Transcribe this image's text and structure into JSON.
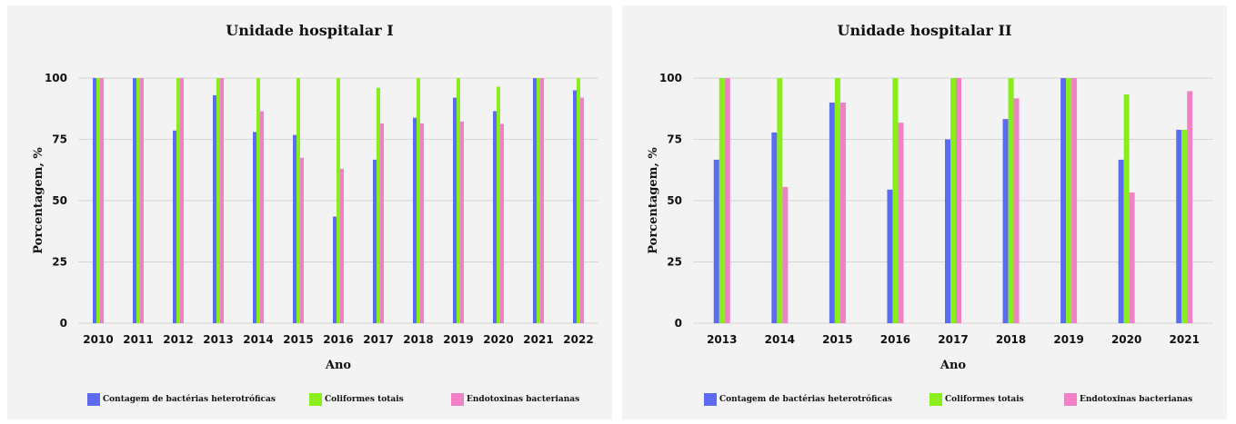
{
  "colors": {
    "bacterias": "#5b6cf0",
    "coliformes": "#88ee1c",
    "endotoxinas": "#ee82c4",
    "grid": "#d4d4d4"
  },
  "chart_data": [
    {
      "type": "bar",
      "title": "Unidade hospitalar I",
      "xlabel": "Ano",
      "ylabel": "Porcentagem, %",
      "ylim": [
        0,
        100
      ],
      "yticks": [
        0,
        25,
        50,
        75,
        100
      ],
      "grid": true,
      "legend_position": "bottom",
      "categories": [
        "2010",
        "2011",
        "2012",
        "2013",
        "2014",
        "2015",
        "2016",
        "2017",
        "2018",
        "2019",
        "2020",
        "2021",
        "2022"
      ],
      "series": [
        {
          "name": "Contagem de bactérias heterotróficas",
          "color": "#5b6cf0",
          "values": [
            100,
            100,
            78.6,
            93,
            78,
            76.8,
            43.5,
            66.7,
            83.8,
            92,
            86.5,
            100,
            95
          ]
        },
        {
          "name": "Coliformes totais",
          "color": "#88ee1c",
          "values": [
            100,
            100,
            100,
            100,
            100,
            100,
            100,
            96,
            100,
            100,
            96.5,
            100,
            100
          ]
        },
        {
          "name": "Endotoxinas bacterianas",
          "color": "#ee82c4",
          "values": [
            100,
            100,
            100,
            100,
            86.5,
            67.5,
            63,
            81.5,
            81.5,
            82.3,
            81.3,
            100,
            92
          ]
        }
      ]
    },
    {
      "type": "bar",
      "title": "Unidade hospitalar II",
      "xlabel": "Ano",
      "ylabel": "Porcentagem, %",
      "ylim": [
        0,
        100
      ],
      "yticks": [
        0,
        25,
        50,
        75,
        100
      ],
      "grid": true,
      "legend_position": "bottom",
      "categories": [
        "2013",
        "2014",
        "2015",
        "2016",
        "2017",
        "2018",
        "2019",
        "2020",
        "2021"
      ],
      "series": [
        {
          "name": "Contagem de bactérias heterotróficas",
          "color": "#5b6cf0",
          "values": [
            66.7,
            77.8,
            90,
            54.5,
            75,
            83.3,
            100,
            66.7,
            78.9
          ]
        },
        {
          "name": "Coliformes totais",
          "color": "#88ee1c",
          "values": [
            100,
            100,
            100,
            100,
            100,
            100,
            100,
            93.3,
            78.9
          ]
        },
        {
          "name": "Endotoxinas bacterianas",
          "color": "#ee82c4",
          "values": [
            100,
            55.6,
            90,
            81.8,
            100,
            91.7,
            100,
            53.3,
            94.7
          ]
        }
      ]
    }
  ]
}
